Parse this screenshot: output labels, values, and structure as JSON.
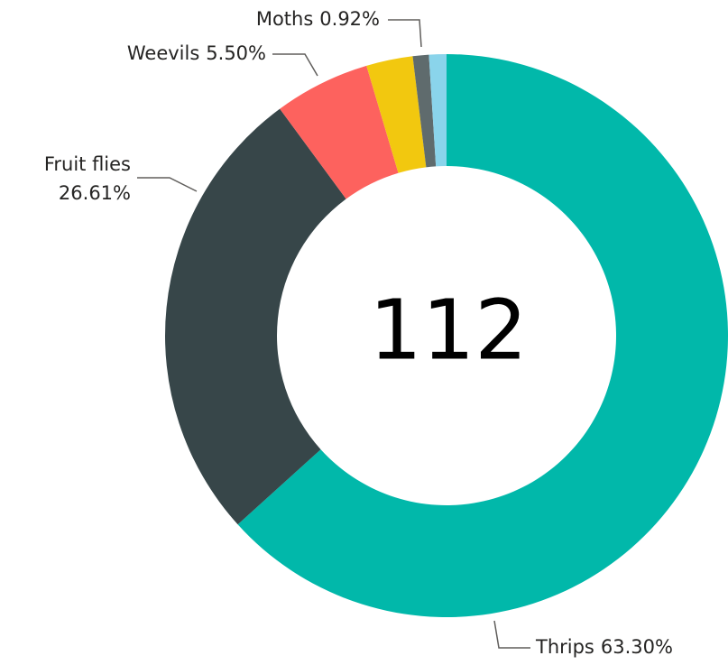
{
  "chart_data": {
    "type": "donut",
    "categories": [
      "Thrips",
      "Fruit flies",
      "Weevils",
      null,
      "Moths",
      null
    ],
    "values": [
      63.3,
      26.61,
      5.5,
      2.67,
      0.92,
      1.0
    ],
    "value_labels": [
      "63.30%",
      "26.61%",
      "5.50%",
      null,
      "0.92%",
      null
    ],
    "colors": [
      "#01b8aa",
      "#374649",
      "#fd625e",
      "#f2c80f",
      "#5f6b6d",
      "#8ad4eb"
    ],
    "total": 112
  }
}
